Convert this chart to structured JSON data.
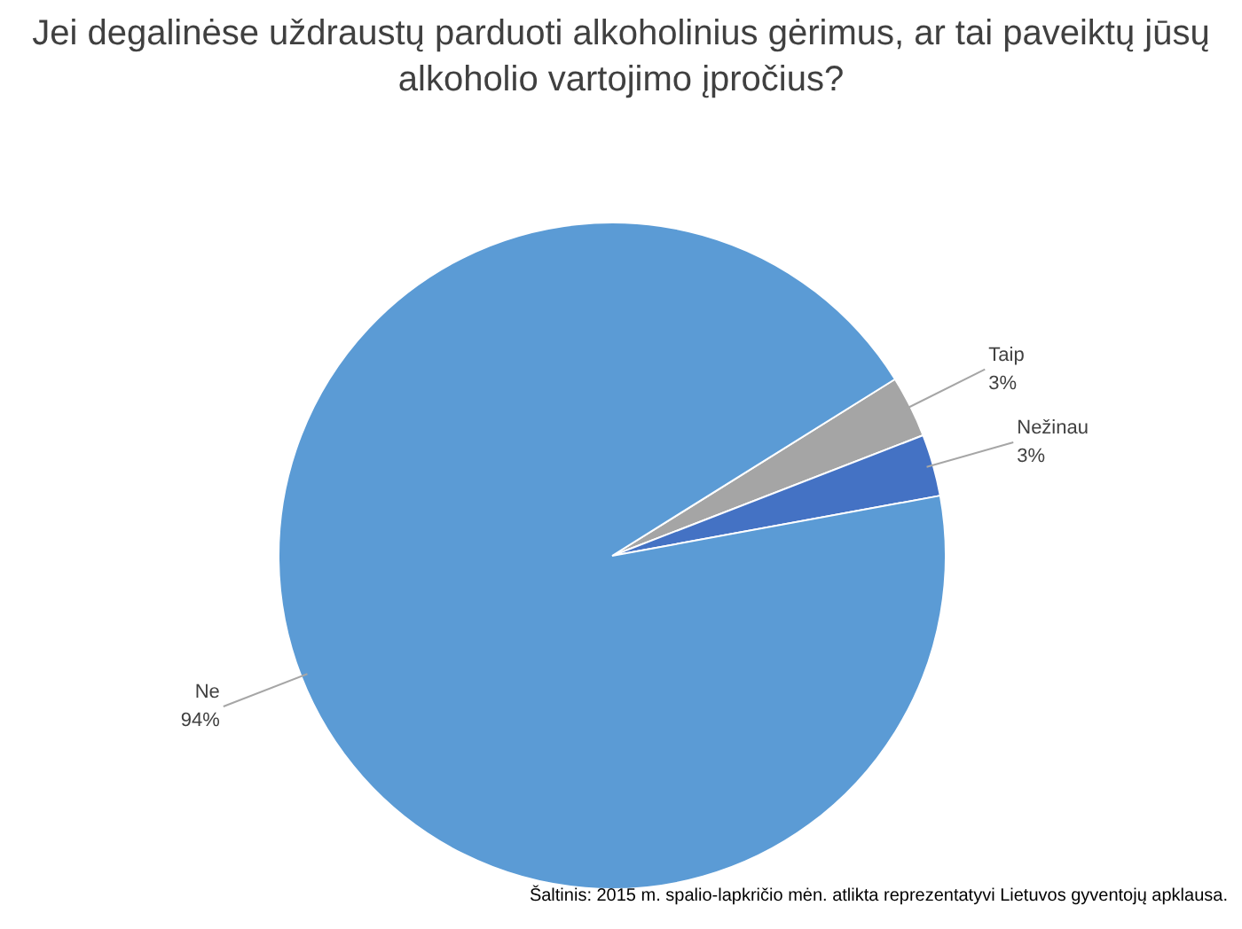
{
  "chart_data": {
    "type": "pie",
    "title": "Jei degalinėse uždraustų parduoti alkoholinius gėrimus, ar tai paveiktų jūsų alkoholio vartojimo įpročius?",
    "categories": [
      "Taip",
      "Nežinau",
      "Ne"
    ],
    "values": [
      3,
      3,
      94
    ],
    "value_labels": [
      "3%",
      "3%",
      "94%"
    ],
    "colors": [
      "#a5a5a5",
      "#4472c4",
      "#5b9bd5"
    ],
    "annotations": [
      "Šaltinis: 2015 m. spalio-lapkričio mėn. atlikta reprezentatyvi Lietuvos gyventojų apklausa."
    ]
  }
}
